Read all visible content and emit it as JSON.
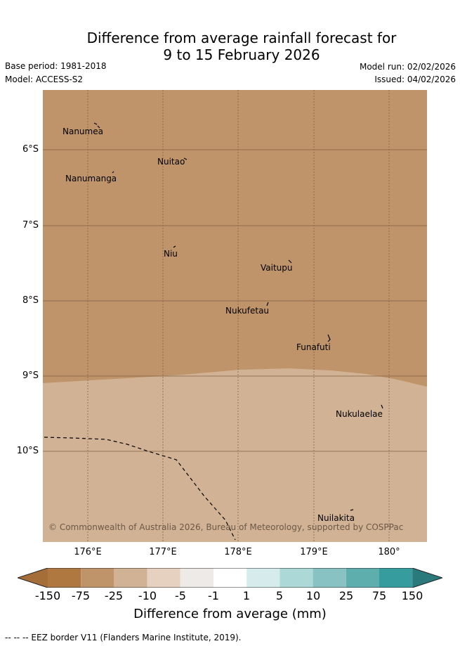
{
  "header": {
    "title_line1": "Difference from average rainfall forecast for",
    "title_line2": "9 to 15 February 2026",
    "base_period": "Base period: 1981-2018",
    "model": "Model: ACCESS-S2",
    "model_run": "Model run: 02/02/2026",
    "issued": "Issued: 04/02/2026"
  },
  "map": {
    "lat_labels": [
      "6°S",
      "7°S",
      "8°S",
      "9°S",
      "10°S"
    ],
    "lon_labels": [
      "176°E",
      "177°E",
      "178°E",
      "179°E",
      "180°"
    ],
    "places": [
      "Nanumea",
      "Nuitao",
      "Nanumanga",
      "Niu",
      "Vaitupu",
      "Nukufetau",
      "Funafuti",
      "Nukulaelae",
      "Nuilakita"
    ],
    "regions": [
      {
        "category": "-75 to -25",
        "color": "#c0946a"
      },
      {
        "category": "-25 to -10",
        "color": "#d2b294"
      }
    ],
    "copyright": "© Commonwealth of Australia 2026, Bureau of Meteorology, supported by COSPPac"
  },
  "legend": {
    "title": "Difference from average (mm)",
    "ticks": [
      "-150",
      "-75",
      "-25",
      "-10",
      "-5",
      "-1",
      "1",
      "5",
      "10",
      "25",
      "75",
      "150"
    ],
    "colors": [
      "#a56d37",
      "#b07841",
      "#c0946a",
      "#d2b294",
      "#e6d1c0",
      "#eeeae7",
      "#ffffff",
      "#d6ecec",
      "#acd8d7",
      "#88c2c2",
      "#5eaeae",
      "#369c9d",
      "#2a7a7c"
    ],
    "footnote": "-- -- -- EEZ border V11 (Flanders Marine Institute, 2019)."
  }
}
